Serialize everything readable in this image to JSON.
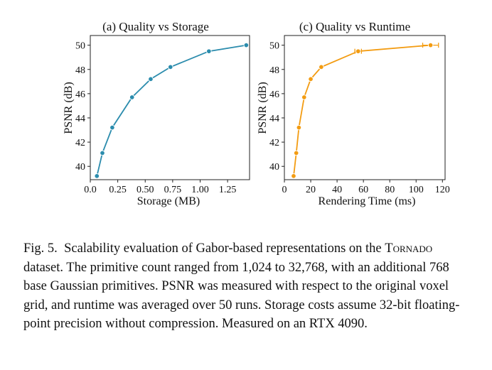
{
  "chart_data": [
    {
      "type": "line",
      "title": "(a) Quality vs Storage",
      "xlabel": "Storage (MB)",
      "ylabel": "PSNR (dB)",
      "xlim": [
        0.0,
        1.45
      ],
      "ylim": [
        38.9,
        50.8
      ],
      "xticks": [
        0.0,
        0.25,
        0.5,
        0.75,
        1.0,
        1.25
      ],
      "xtick_labels": [
        "0.0",
        "0.25",
        "0.50",
        "0.75",
        "1.00",
        "1.25"
      ],
      "yticks": [
        40,
        42,
        44,
        46,
        48,
        50
      ],
      "ytick_labels": [
        "40",
        "42",
        "44",
        "46",
        "48",
        "50"
      ],
      "color": "#2b8cad",
      "x": [
        0.06,
        0.11,
        0.2,
        0.38,
        0.55,
        0.73,
        1.08,
        1.42
      ],
      "y": [
        39.2,
        41.1,
        43.2,
        45.7,
        47.2,
        48.2,
        49.5,
        50.0
      ]
    },
    {
      "type": "line",
      "title": "(c) Quality vs Runtime",
      "xlabel": "Rendering Time (ms)",
      "ylabel": "PSNR (dB)",
      "xlim": [
        0,
        122
      ],
      "ylim": [
        38.9,
        50.8
      ],
      "xticks": [
        0,
        20,
        40,
        60,
        80,
        100,
        120
      ],
      "xtick_labels": [
        "0",
        "20",
        "40",
        "60",
        "80",
        "100",
        "120"
      ],
      "yticks": [
        40,
        42,
        44,
        46,
        48,
        50
      ],
      "ytick_labels": [
        "40",
        "42",
        "44",
        "46",
        "48",
        "50"
      ],
      "color": "#f39c12",
      "x": [
        7,
        9,
        11,
        15,
        20,
        28,
        56,
        111
      ],
      "y": [
        39.2,
        41.1,
        43.2,
        45.7,
        47.2,
        48.2,
        49.5,
        50.0
      ],
      "x_err": [
        0.5,
        0.5,
        0.5,
        0.5,
        0.8,
        0.8,
        2.5,
        6
      ]
    }
  ],
  "caption": {
    "label": "Fig. 5.",
    "text_before": "Scalability evaluation of Gabor-based representations on the ",
    "dataset": "Tornado",
    "text_after": " dataset. The primitive count ranged from 1,024 to 32,768, with an additional 768 base Gaussian primitives. PSNR was measured with respect to the original voxel grid, and runtime was averaged over 50 runs. Storage costs assume 32-bit floating-point precision without compression. Measured on an RTX 4090."
  }
}
